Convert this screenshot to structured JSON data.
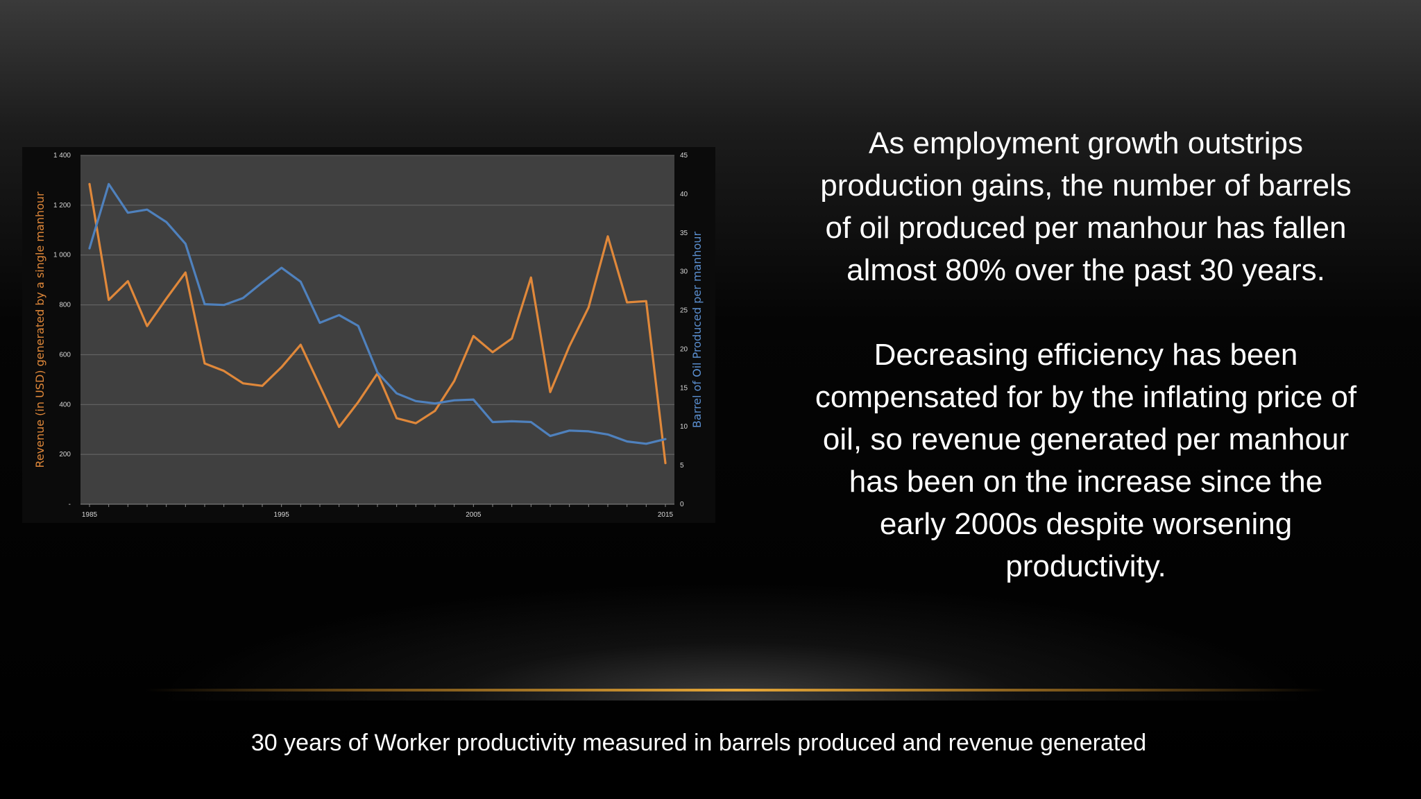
{
  "slide": {
    "paragraph1": "As employment growth outstrips production gains, the number of barrels of oil produced per manhour has fallen almost 80% over the past 30 years.",
    "paragraph2": "Decreasing efficiency has been compensated for by the inflating price of oil, so revenue generated per manhour has been on the increase since the early 2000s despite worsening productivity.",
    "caption": "30 years of Worker productivity measured in barrels produced and revenue generated"
  },
  "chart_data": {
    "type": "line",
    "title": "",
    "xlabel": "",
    "ylabel": "Revenue (in USD) generated by a single manhour",
    "y2label": "Barrel of Oil Produced per manhour",
    "xlim": [
      1985,
      2015
    ],
    "ylim": [
      0,
      1400
    ],
    "y2lim": [
      0,
      45
    ],
    "x_ticks": [
      "1985",
      "1995",
      "2005",
      "2015"
    ],
    "y_ticks": [
      "-",
      "200",
      "400",
      "600",
      "800",
      "1 000",
      "1 200",
      "1 400"
    ],
    "y2_ticks": [
      "0",
      "5",
      "10",
      "15",
      "20",
      "25",
      "30",
      "35",
      "40",
      "45"
    ],
    "grid": true,
    "plot_background": "#404040",
    "x": [
      1985,
      1986,
      1987,
      1988,
      1989,
      1990,
      1991,
      1992,
      1993,
      1994,
      1995,
      1996,
      1997,
      1998,
      1999,
      2000,
      2001,
      2002,
      2003,
      2004,
      2005,
      2006,
      2007,
      2008,
      2009,
      2010,
      2011,
      2012,
      2013,
      2014,
      2015
    ],
    "series": [
      {
        "axis": "left",
        "color": "#e0883a",
        "values": [
          1285,
          820,
          895,
          715,
          825,
          930,
          565,
          535,
          485,
          475,
          550,
          640,
          475,
          310,
          410,
          525,
          345,
          325,
          375,
          495,
          675,
          610,
          665,
          910,
          450,
          635,
          790,
          1075,
          810,
          815,
          165
        ]
      },
      {
        "axis": "right",
        "color": "#4f81bd",
        "values": [
          33,
          41.3,
          37.6,
          38,
          36.4,
          33.6,
          25.8,
          25.7,
          26.6,
          28.6,
          30.5,
          28.7,
          23.4,
          24.4,
          23,
          17,
          14.3,
          13.3,
          13,
          13.4,
          13.5,
          10.6,
          10.7,
          10.6,
          8.8,
          9.5,
          9.4,
          9,
          8.1,
          7.8,
          8.4
        ]
      }
    ]
  }
}
